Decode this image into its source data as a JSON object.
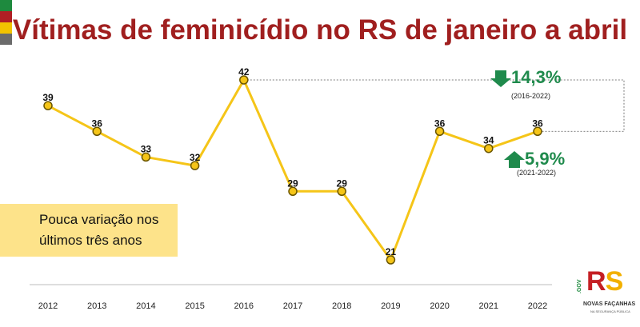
{
  "title": "Vítimas de feminicídio no RS de janeiro a abril",
  "chart_data": {
    "type": "line",
    "categories": [
      "2012",
      "2013",
      "2014",
      "2015",
      "2016",
      "2017",
      "2018",
      "2019",
      "2020",
      "2021",
      "2022"
    ],
    "values": [
      39,
      36,
      33,
      32,
      42,
      29,
      29,
      21,
      36,
      34,
      36
    ],
    "title": "Vítimas de feminicídio no RS de janeiro a abril",
    "xlabel": "",
    "ylabel": "",
    "grid": false,
    "line_color": "#f5c518",
    "marker_fill": "#f5c518",
    "marker_stroke": "#6b5600"
  },
  "callout": {
    "line1": "Pouca variação nos",
    "line2": "últimos três anos"
  },
  "stats": {
    "down": {
      "value": "14,3%",
      "period": "(2016-2022)"
    },
    "up": {
      "value": "5,9%",
      "period": "(2021-2022)"
    }
  },
  "logo": {
    "gov": ".GOV",
    "rs_r": "R",
    "rs_s": "S",
    "line1": "NOVAS FAÇANHAS",
    "line2": "NA SEGURANÇA PÚBLICA"
  },
  "colors": {
    "title": "#a01f1f",
    "accent_green": "#1f8a4c",
    "flag": [
      "#1e8a3e",
      "#b01f24",
      "#f2c300",
      "#6b6b6b"
    ]
  }
}
